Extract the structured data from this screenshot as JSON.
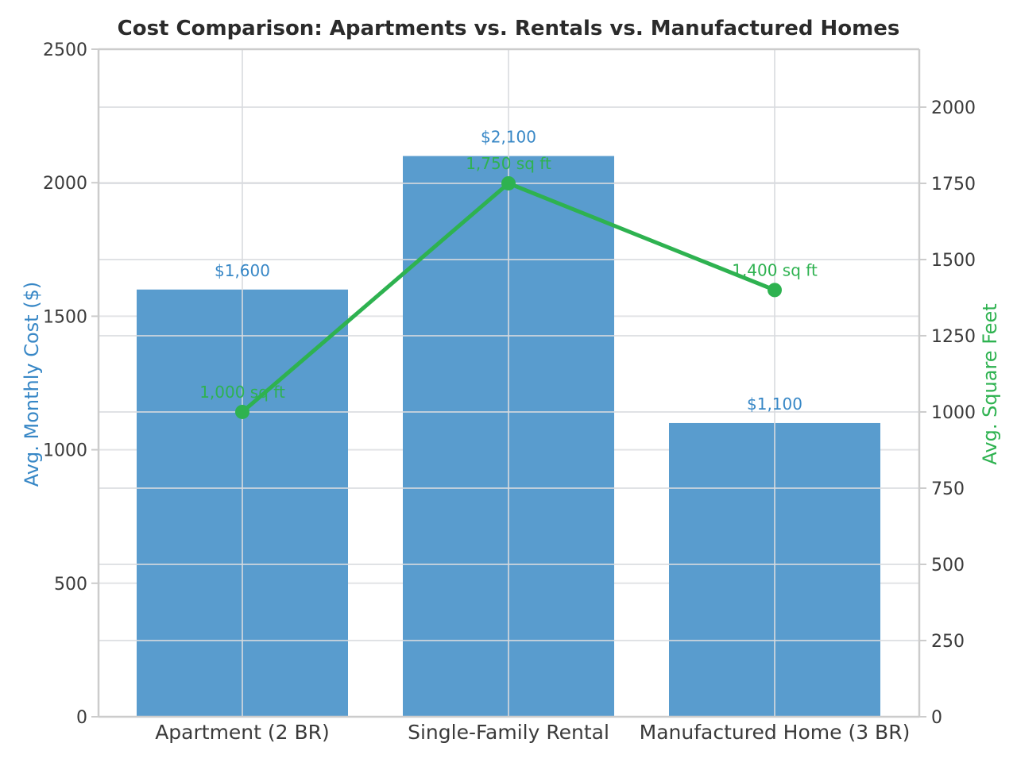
{
  "figure": {
    "background": "#ffffff",
    "title_color": "#2b2b2b",
    "tick_label_color": "#3a3a3a",
    "grid_color": "#e3e4e6",
    "grid_over_bars_color": "rgba(216,219,223,0.8)",
    "spine_color": "#cccccc"
  },
  "chart_data": {
    "type": "bar",
    "title": "Cost Comparison: Apartments vs. Rentals vs. Manufactured Homes",
    "categories": [
      "Apartment (2 BR)",
      "Single-Family Rental",
      "Manufactured Home (3 BR)"
    ],
    "series": [
      {
        "name": "Avg. Monthly Cost ($)",
        "type": "bar",
        "axis": "left",
        "values": [
          1600,
          2100,
          1100
        ],
        "point_labels": [
          "$1,600",
          "$2,100",
          "$1,100"
        ],
        "color": "#599cce",
        "label_color": "#3787c6"
      },
      {
        "name": "Avg. Square Feet",
        "type": "line",
        "axis": "right",
        "values": [
          1000,
          1750,
          1400
        ],
        "point_labels": [
          "1,000 sq ft",
          "1,750 sq ft",
          "1,400 sq ft"
        ],
        "color": "#2eb250",
        "label_color": "#2eb250"
      }
    ],
    "left_axis": {
      "label": "Avg. Monthly Cost ($)",
      "color": "#3787c6",
      "ticks": [
        "0",
        "500",
        "1000",
        "1500",
        "2000",
        "2500"
      ],
      "lim": [
        0,
        2500
      ]
    },
    "right_axis": {
      "label": "Avg. Square Feet",
      "color": "#2eb250",
      "ticks": [
        "0",
        "250",
        "500",
        "750",
        "1000",
        "1250",
        "1500",
        "1750",
        "2000"
      ],
      "lim": [
        0,
        2190
      ]
    },
    "grid": true,
    "legend_position": "none"
  }
}
